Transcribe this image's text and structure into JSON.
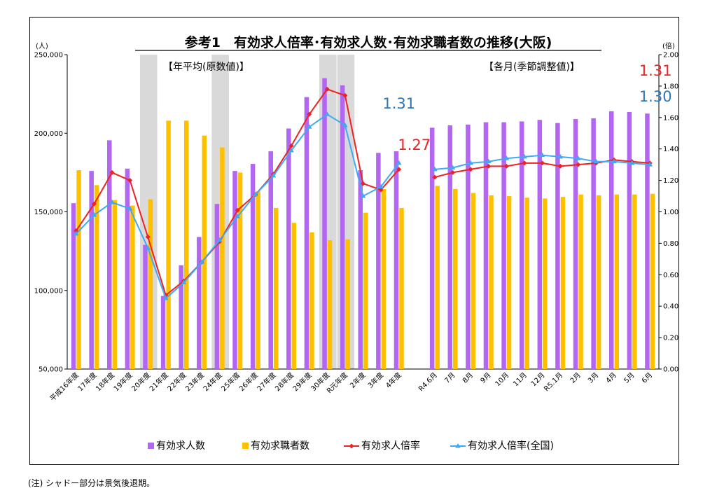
{
  "chart_data": {
    "type": "bar",
    "title": "参考1　有効求人倍率･有効求人数･有効求職者数の推移(大阪)",
    "section_left": "【年平均(原数値)】",
    "section_right": "【各月(季節調整値)】",
    "y_left_unit": "(人)",
    "y_right_unit": "(倍)",
    "y_left_ticks": [
      "50,000",
      "100,000",
      "150,000",
      "200,000",
      "250,000"
    ],
    "y_right_ticks": [
      "0.00",
      "0.20",
      "0.40",
      "0.60",
      "0.80",
      "1.00",
      "1.20",
      "1.40",
      "1.60",
      "1.80",
      "2.00"
    ],
    "ylim_left": [
      50000,
      250000
    ],
    "ylim_right": [
      0,
      2.0
    ],
    "categories": [
      "平成16年度",
      "17年度",
      "18年度",
      "19年度",
      "20年度",
      "21年度",
      "22年度",
      "23年度",
      "24年度",
      "25年度",
      "26年度",
      "27年度",
      "28年度",
      "29年度",
      "30年度",
      "R元年度",
      "2年度",
      "3年度",
      "4年度",
      "",
      "R4.6月",
      "7月",
      "8月",
      "9月",
      "10月",
      "11月",
      "12月",
      "R5.1月",
      "2月",
      "3月",
      "4月",
      "5月",
      "6月"
    ],
    "shaded_categories": [
      "20年度",
      "24年度",
      "30年度",
      "R元年度"
    ],
    "series": [
      {
        "name": "有効求人数",
        "type": "bar",
        "axis": "left",
        "color": "#B266F2",
        "values": [
          155500,
          176000,
          195500,
          177500,
          129000,
          96500,
          116000,
          134000,
          155000,
          176000,
          180500,
          188500,
          203000,
          223000,
          235000,
          230500,
          176500,
          187500,
          188500,
          null,
          203500,
          205000,
          205500,
          207000,
          207000,
          207500,
          208500,
          206500,
          209000,
          209500,
          214000,
          213500,
          212500
        ]
      },
      {
        "name": "有効求職者数",
        "type": "bar",
        "axis": "left",
        "color": "#FFC000",
        "values": [
          176500,
          167000,
          157500,
          154000,
          158000,
          208000,
          208000,
          198500,
          191000,
          175000,
          163000,
          152500,
          143000,
          137000,
          132000,
          132500,
          149500,
          164500,
          152500,
          null,
          166500,
          164500,
          162000,
          160500,
          160000,
          159000,
          158500,
          159500,
          161000,
          160500,
          161000,
          161000,
          161500
        ]
      },
      {
        "name": "有効求人倍率",
        "type": "line",
        "axis": "right",
        "color": "#EE2222",
        "values": [
          0.88,
          1.05,
          1.25,
          1.2,
          0.84,
          0.47,
          0.56,
          0.68,
          0.81,
          1.01,
          1.11,
          1.24,
          1.42,
          1.62,
          1.78,
          1.74,
          1.18,
          1.14,
          1.27,
          null,
          1.22,
          1.25,
          1.27,
          1.29,
          1.29,
          1.31,
          1.31,
          1.29,
          1.3,
          1.31,
          1.33,
          1.32,
          1.31
        ]
      },
      {
        "name": "有効求人倍率(全国)",
        "type": "line",
        "axis": "right",
        "color": "#3FA9F5",
        "values": [
          0.86,
          0.98,
          1.06,
          1.02,
          0.77,
          0.45,
          0.55,
          0.68,
          0.82,
          0.97,
          1.11,
          1.23,
          1.39,
          1.54,
          1.62,
          1.55,
          1.1,
          1.16,
          1.31,
          null,
          1.27,
          1.28,
          1.31,
          1.32,
          1.34,
          1.35,
          1.36,
          1.35,
          1.34,
          1.32,
          1.32,
          1.31,
          1.3
        ]
      }
    ],
    "annotations": [
      {
        "text": "1.31",
        "color": "#2E75B6",
        "at": "4年度",
        "series": "有効求人倍率(全国)"
      },
      {
        "text": "1.27",
        "color": "#EE2222",
        "at": "4年度",
        "series": "有効求人倍率"
      },
      {
        "text": "1.31",
        "color": "#EE2222",
        "at": "6月",
        "series": "有効求人倍率"
      },
      {
        "text": "1.30",
        "color": "#2E75B6",
        "at": "6月",
        "series": "有効求人倍率(全国)"
      }
    ],
    "legend_position": "bottom"
  },
  "footnote": "(注) シャドー部分は景気後退期。"
}
